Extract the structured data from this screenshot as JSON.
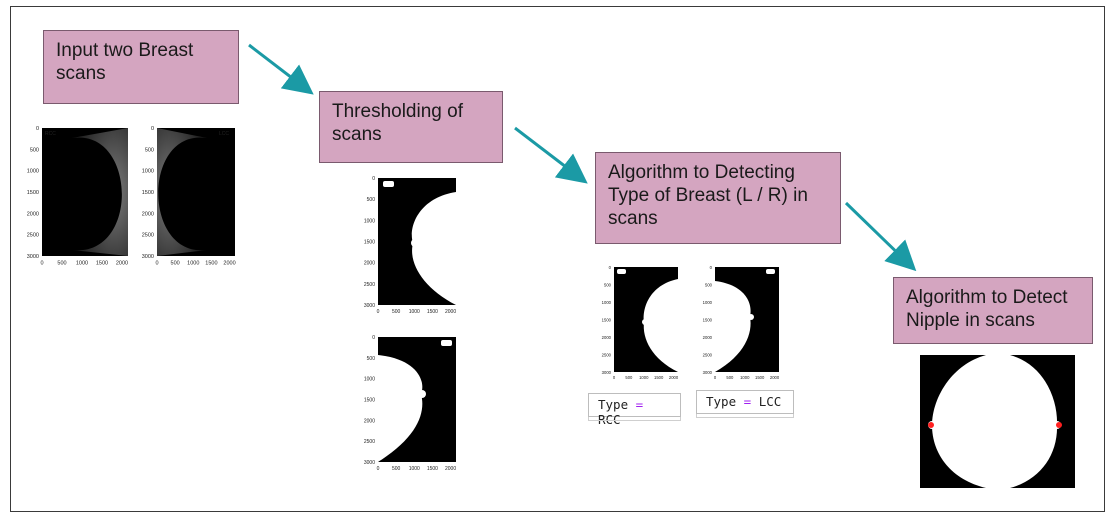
{
  "steps": [
    {
      "text": "Input two Breast\nscans"
    },
    {
      "text": "Thresholding of\nscans"
    },
    {
      "text": "Algorithm to Detecting\nType of Breast (L / R) in\nscans"
    },
    {
      "text": "Algorithm to Detect\nNipple in scans"
    }
  ],
  "scans": {
    "rcc_tag": "RCC",
    "lcc_tag": "LCC",
    "y_ticks": [
      "0",
      "500",
      "1000",
      "1500",
      "2000",
      "2500",
      "3000"
    ],
    "x_ticks": [
      "0",
      "500",
      "1000",
      "1500",
      "2000"
    ]
  },
  "type_results": [
    {
      "key": "Type",
      "op": "=",
      "value": "RCC"
    },
    {
      "key": "Type",
      "op": "=",
      "value": "LCC"
    }
  ],
  "colors": {
    "box_fill": "#d4a5c0",
    "arrow": "#1b9aa5",
    "nipple_marker": "#ff2020"
  }
}
